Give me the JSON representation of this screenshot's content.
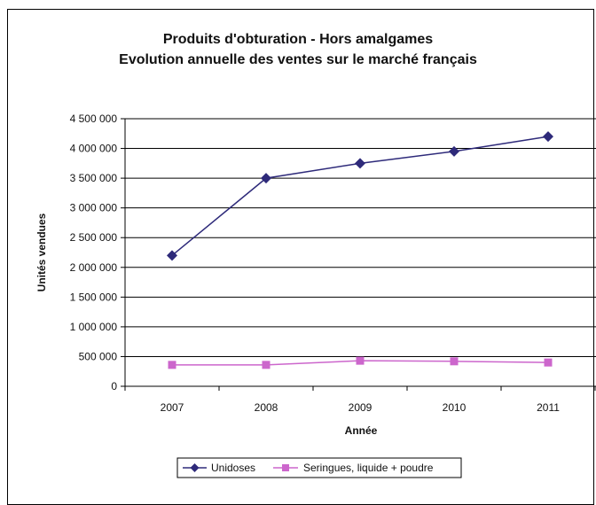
{
  "chart_data": {
    "type": "line",
    "title": "Produits d'obturation  - Hors amalgames",
    "subtitle": "Evolution annuelle des ventes sur le marché français",
    "xlabel": "Année",
    "ylabel": "Unités vendues",
    "categories": [
      "2007",
      "2008",
      "2009",
      "2010",
      "2011"
    ],
    "ylim": [
      0,
      4500000
    ],
    "yticks": [
      0,
      500000,
      1000000,
      1500000,
      2000000,
      2500000,
      3000000,
      3500000,
      4000000,
      4500000
    ],
    "ytick_labels": [
      "0",
      "500 000",
      "1 000 000",
      "1 500 000",
      "2 000 000",
      "2 500 000",
      "3 000 000",
      "3 500 000",
      "4 000 000",
      "4 500 000"
    ],
    "grid": true,
    "legend_position": "bottom",
    "series": [
      {
        "name": "Unidoses",
        "values": [
          2200000,
          3500000,
          3750000,
          3950000,
          4200000
        ],
        "color": "#2E2A7A",
        "marker": "diamond"
      },
      {
        "name": "Seringues, liquide + poudre",
        "values": [
          360000,
          360000,
          430000,
          420000,
          400000
        ],
        "color": "#CC66CC",
        "marker": "square"
      }
    ]
  }
}
